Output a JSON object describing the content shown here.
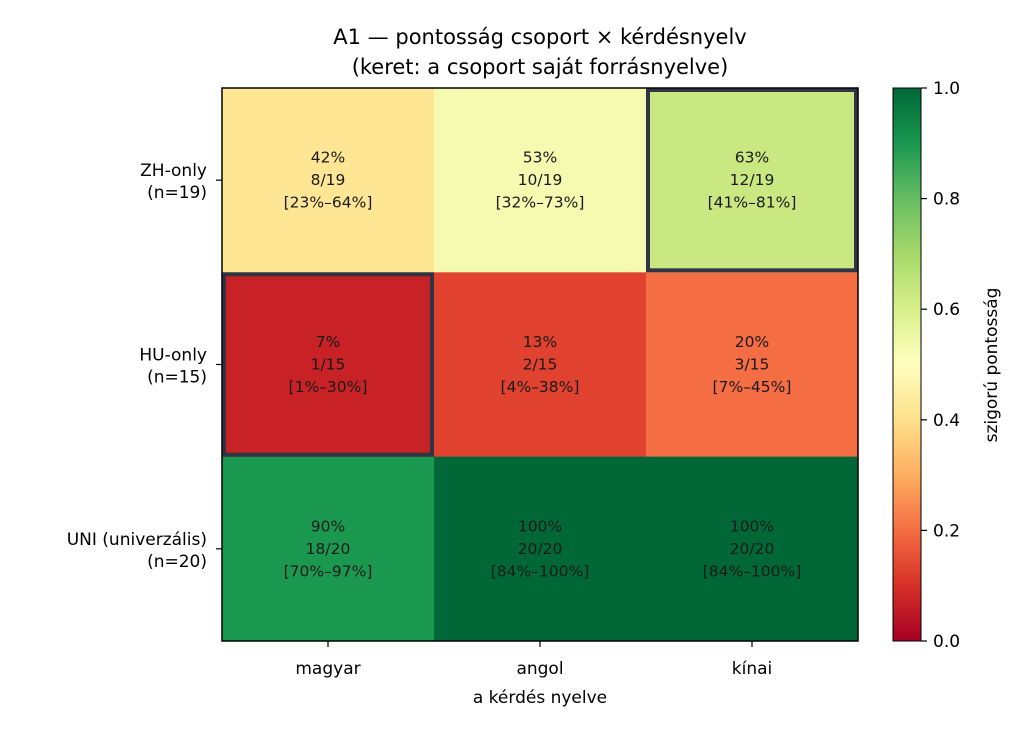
{
  "chart_data": {
    "type": "heatmap",
    "title": "A1 — pontosság csoport × kérdésnyelv",
    "subtitle": "(keret: a csoport saját forrásnyelve)",
    "xlabel": "a kérdés nyelve",
    "x_categories": [
      "magyar",
      "angol",
      "kínai"
    ],
    "y_categories": [
      [
        "ZH-only",
        "(n=19)"
      ],
      [
        "HU-only",
        "(n=15)"
      ],
      [
        "UNI (univerzális)",
        "(n=20)"
      ]
    ],
    "values": [
      [
        0.42,
        0.53,
        0.63
      ],
      [
        0.07,
        0.13,
        0.2
      ],
      [
        0.9,
        1.0,
        1.0
      ]
    ],
    "cell_labels": [
      [
        [
          "42%",
          "8/19",
          "[23%–64%]"
        ],
        [
          "53%",
          "10/19",
          "[32%–73%]"
        ],
        [
          "63%",
          "12/19",
          "[41%–81%]"
        ]
      ],
      [
        [
          "7%",
          "1/15",
          "[1%–30%]"
        ],
        [
          "13%",
          "2/15",
          "[4%–38%]"
        ],
        [
          "20%",
          "3/15",
          "[7%–45%]"
        ]
      ],
      [
        [
          "90%",
          "18/20",
          "[70%–97%]"
        ],
        [
          "100%",
          "20/20",
          "[84%–100%]"
        ],
        [
          "100%",
          "20/20",
          "[84%–100%]"
        ]
      ]
    ],
    "highlighted_cells": [
      [
        0,
        2
      ],
      [
        1,
        0
      ]
    ],
    "highlight_color": "#2f3542",
    "colorbar": {
      "label": "szigorú pontosság",
      "ticks": [
        "0.0",
        "0.2",
        "0.4",
        "0.6",
        "0.8",
        "1.0"
      ],
      "vmin": 0,
      "vmax": 1,
      "colormap": "RdYlGn"
    }
  }
}
